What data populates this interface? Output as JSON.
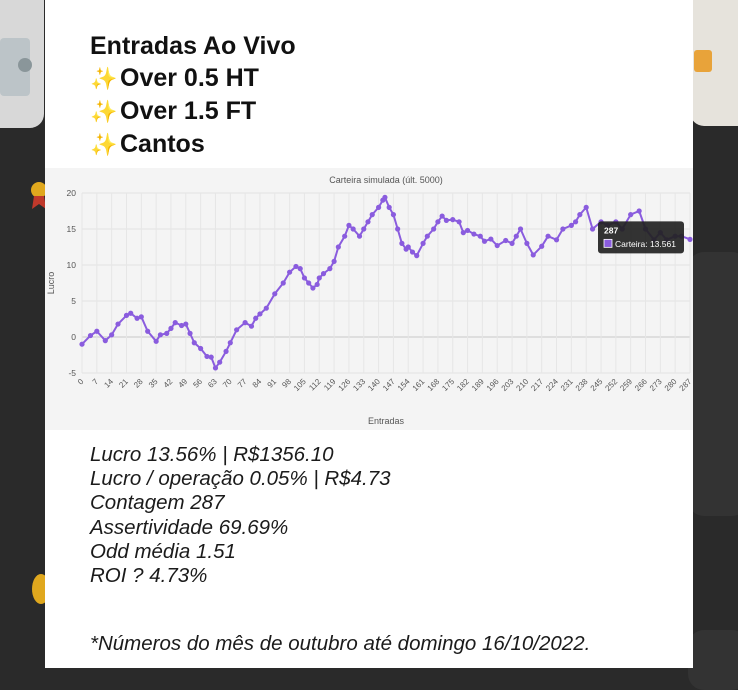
{
  "header": {
    "title": "Entradas Ao Vivo",
    "markets": [
      {
        "icon": "sparkles-icon",
        "label": "Over 0.5 HT"
      },
      {
        "icon": "sparkles-icon",
        "label": "Over 1.5 FT"
      },
      {
        "icon": "sparkles-icon",
        "label": "Cantos"
      }
    ]
  },
  "colors": {
    "line": "#8a5cde",
    "tooltip_bg": "#222222"
  },
  "chart_data": {
    "type": "line",
    "title": "Carteira simulada (últ. 5000)",
    "xlabel": "Entradas",
    "ylabel": "Lucro",
    "ylim": [
      -5,
      20
    ],
    "yticks": [
      "-5",
      "0",
      "5",
      "10",
      "15",
      "20"
    ],
    "xticks": [
      "0",
      "7",
      "14",
      "21",
      "28",
      "35",
      "42",
      "49",
      "56",
      "63",
      "70",
      "77",
      "84",
      "91",
      "98",
      "105",
      "112",
      "119",
      "126",
      "133",
      "140",
      "147",
      "154",
      "161",
      "168",
      "175",
      "182",
      "189",
      "196",
      "203",
      "210",
      "217",
      "224",
      "231",
      "238",
      "245",
      "252",
      "259",
      "266",
      "273",
      "280",
      "287"
    ],
    "grid": true,
    "series": [
      {
        "name": "Carteira",
        "x": [
          0,
          4,
          7,
          11,
          14,
          17,
          21,
          23,
          26,
          28,
          31,
          35,
          37,
          40,
          42,
          44,
          47,
          49,
          51,
          53,
          56,
          59,
          61,
          63,
          65,
          68,
          70,
          73,
          77,
          80,
          82,
          84,
          87,
          91,
          95,
          98,
          101,
          103,
          105,
          107,
          109,
          111,
          112,
          114,
          117,
          119,
          121,
          124,
          126,
          128,
          131,
          133,
          135,
          137,
          140,
          142,
          143,
          145,
          147,
          149,
          151,
          153,
          154,
          156,
          158,
          161,
          163,
          166,
          168,
          170,
          172,
          175,
          178,
          180,
          182,
          185,
          188,
          190,
          193,
          196,
          200,
          203,
          205,
          207,
          210,
          213,
          217,
          220,
          224,
          227,
          231,
          233,
          235,
          238,
          241,
          245,
          248,
          252,
          255,
          259,
          263,
          266,
          270,
          273,
          276,
          280,
          283,
          287
        ],
        "y": [
          -1,
          0.2,
          0.8,
          -0.5,
          0.3,
          1.8,
          3.0,
          3.3,
          2.6,
          2.8,
          0.8,
          -0.6,
          0.3,
          0.5,
          1.2,
          2.0,
          1.6,
          1.8,
          0.5,
          -0.8,
          -1.6,
          -2.7,
          -2.8,
          -4.3,
          -3.5,
          -2.0,
          -0.8,
          1.0,
          2.0,
          1.5,
          2.6,
          3.2,
          4.0,
          6.0,
          7.5,
          9.0,
          9.8,
          9.5,
          8.2,
          7.5,
          6.8,
          7.3,
          8.2,
          8.8,
          9.5,
          10.5,
          12.5,
          14.0,
          15.5,
          15.0,
          14.0,
          15.0,
          16.0,
          17.0,
          18.0,
          19.0,
          19.4,
          18.0,
          17.0,
          15.0,
          13.0,
          12.2,
          12.5,
          11.8,
          11.3,
          13.0,
          14.0,
          15.0,
          16.0,
          16.8,
          16.2,
          16.3,
          16.0,
          14.5,
          14.8,
          14.3,
          14.0,
          13.3,
          13.6,
          12.7,
          13.4,
          13.0,
          14.0,
          15.0,
          13.0,
          11.4,
          12.6,
          14.0,
          13.5,
          15.0,
          15.5,
          16.0,
          17.0,
          18.0,
          15.0,
          16.0,
          15.5,
          16.0,
          15.0,
          17.0,
          17.5,
          15.0,
          13.5,
          14.5,
          13.5,
          14.0,
          14.0,
          13.561
        ]
      }
    ],
    "tooltip": {
      "title": "287",
      "label": "Carteira: 13.561"
    }
  },
  "stats": [
    "Lucro 13.56% | R$1356.10",
    "Lucro / operação 0.05% | R$4.73",
    "Contagem 287",
    "Assertividade 69.69%",
    "Odd média 1.51",
    "ROI ? 4.73%"
  ],
  "footnote": "*Números do mês de outubro até domingo 16/10/2022."
}
